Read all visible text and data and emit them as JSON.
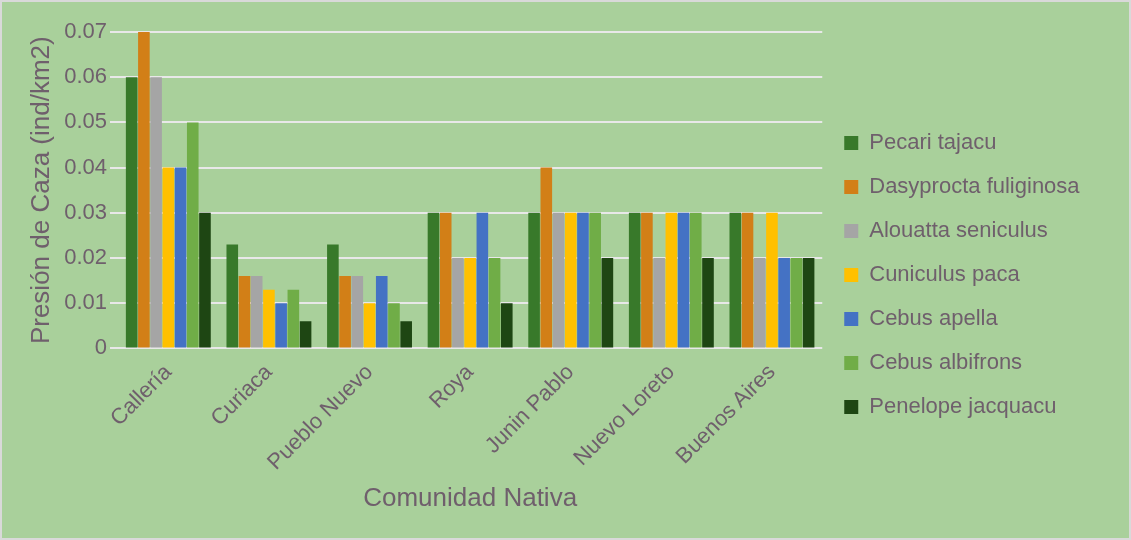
{
  "chart_data": {
    "type": "bar",
    "xlabel": "Comunidad Nativa",
    "ylabel": "Presión de Caza (ind/km2)",
    "categories": [
      "Callería",
      "Curiaca",
      "Pueblo Nuevo",
      "Roya",
      "Junin Pablo",
      "Nuevo Loreto",
      "Buenos Aires"
    ],
    "series": [
      {
        "name": "Pecari tajacu",
        "color": "#38792a",
        "values": [
          0.06,
          0.023,
          0.023,
          0.03,
          0.03,
          0.03,
          0.03
        ]
      },
      {
        "name": "Dasyprocta fuliginosa",
        "color": "#d27f17",
        "values": [
          0.07,
          0.016,
          0.016,
          0.03,
          0.04,
          0.03,
          0.03
        ]
      },
      {
        "name": "Alouatta seniculus",
        "color": "#a5a5a5",
        "values": [
          0.06,
          0.016,
          0.016,
          0.02,
          0.03,
          0.02,
          0.02
        ]
      },
      {
        "name": "Cuniculus paca",
        "color": "#ffc000",
        "values": [
          0.04,
          0.013,
          0.01,
          0.02,
          0.03,
          0.03,
          0.03
        ]
      },
      {
        "name": "Cebus apella",
        "color": "#4472c4",
        "values": [
          0.04,
          0.01,
          0.016,
          0.03,
          0.03,
          0.03,
          0.02
        ]
      },
      {
        "name": "Cebus albifrons",
        "color": "#70ad47",
        "values": [
          0.05,
          0.013,
          0.01,
          0.02,
          0.03,
          0.03,
          0.02
        ]
      },
      {
        "name": "Penelope jacquacu",
        "color": "#1e4613",
        "values": [
          0.03,
          0.006,
          0.006,
          0.01,
          0.02,
          0.02,
          0.02
        ]
      }
    ],
    "ylim": [
      0,
      0.07
    ],
    "yticks": [
      0,
      0.01,
      0.02,
      0.03,
      0.04,
      0.05,
      0.06,
      0.07
    ],
    "grid": "y",
    "legend": "right"
  }
}
